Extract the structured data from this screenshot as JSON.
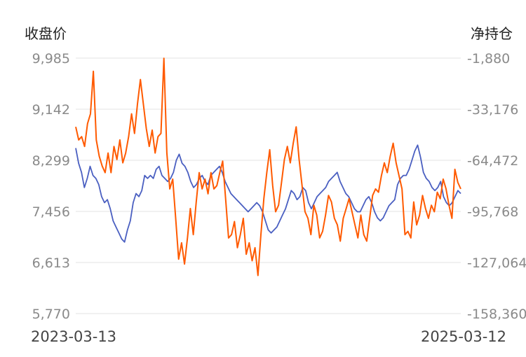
{
  "chart_data": {
    "type": "line",
    "title": "",
    "y_left_label": "收盘价",
    "y_right_label": "净持仓",
    "x_start_label": "2023-03-13",
    "x_end_label": "2025-03-12",
    "y_left_ticks": [
      "9,985",
      "9,142",
      "8,299",
      "7,456",
      "6,613",
      "5,770"
    ],
    "y_right_ticks": [
      "-1,880",
      "-33,176",
      "-64,472",
      "-95,768",
      "-127,064",
      "-158,360"
    ],
    "y_left_range": [
      5770,
      9985
    ],
    "y_right_range": [
      -158360,
      -1880
    ],
    "grid": true,
    "series": [
      {
        "name": "",
        "axis": "left",
        "color": "#4a5fc1",
        "values": [
          8500,
          8250,
          8100,
          7850,
          8000,
          8200,
          8050,
          8000,
          7900,
          7700,
          7600,
          7650,
          7500,
          7300,
          7200,
          7100,
          7000,
          6950,
          7150,
          7300,
          7600,
          7750,
          7700,
          7800,
          8050,
          8000,
          8050,
          8000,
          8150,
          8200,
          8050,
          8000,
          7950,
          8000,
          8100,
          8300,
          8400,
          8250,
          8200,
          8100,
          7950,
          7850,
          7900,
          8000,
          8050,
          7950,
          7900,
          8050,
          8100,
          8150,
          8200,
          8100,
          7950,
          7850,
          7750,
          7700,
          7650,
          7600,
          7550,
          7500,
          7450,
          7500,
          7550,
          7600,
          7550,
          7450,
          7300,
          7150,
          7100,
          7150,
          7200,
          7300,
          7400,
          7500,
          7650,
          7800,
          7750,
          7650,
          7700,
          7850,
          7800,
          7600,
          7500,
          7600,
          7700,
          7750,
          7800,
          7850,
          7950,
          8000,
          8050,
          8100,
          7950,
          7850,
          7750,
          7700,
          7600,
          7500,
          7450,
          7450,
          7550,
          7650,
          7700,
          7600,
          7450,
          7350,
          7300,
          7350,
          7450,
          7550,
          7600,
          7650,
          7900,
          8000,
          8050,
          8050,
          8150,
          8300,
          8450,
          8550,
          8350,
          8100,
          8000,
          7950,
          7850,
          7800,
          7850,
          7950,
          7700,
          7600,
          7550,
          7600,
          7700,
          7800,
          7750
        ]
      },
      {
        "name": "",
        "axis": "right",
        "color": "#ff5a00",
        "values": [
          -44000,
          -52000,
          -50000,
          -56000,
          -42000,
          -36000,
          -10000,
          -52000,
          -62000,
          -68000,
          -72000,
          -60000,
          -72000,
          -56000,
          -64000,
          -52000,
          -66000,
          -60000,
          -50000,
          -36000,
          -48000,
          -30000,
          -15000,
          -30000,
          -45000,
          -56000,
          -46000,
          -60000,
          -50000,
          -48000,
          -2000,
          -60000,
          -82000,
          -76000,
          -100000,
          -125000,
          -115000,
          -128000,
          -112000,
          -94000,
          -110000,
          -90000,
          -72000,
          -82000,
          -76000,
          -85000,
          -72000,
          -82000,
          -80000,
          -72000,
          -65000,
          -88000,
          -112000,
          -110000,
          -102000,
          -118000,
          -110000,
          -100000,
          -122000,
          -115000,
          -126000,
          -118000,
          -135000,
          -110000,
          -88000,
          -72000,
          -58000,
          -80000,
          -96000,
          -92000,
          -78000,
          -64000,
          -56000,
          -66000,
          -54000,
          -44000,
          -64000,
          -80000,
          -96000,
          -100000,
          -110000,
          -92000,
          -98000,
          -112000,
          -108000,
          -98000,
          -86000,
          -90000,
          -100000,
          -104000,
          -114000,
          -100000,
          -94000,
          -88000,
          -96000,
          -104000,
          -112000,
          -98000,
          -110000,
          -114000,
          -100000,
          -86000,
          -82000,
          -84000,
          -74000,
          -66000,
          -72000,
          -62000,
          -54000,
          -66000,
          -74000,
          -82000,
          -110000,
          -108000,
          -112000,
          -90000,
          -104000,
          -98000,
          -86000,
          -94000,
          -100000,
          -92000,
          -96000,
          -84000,
          -88000,
          -76000,
          -82000,
          -92000,
          -100000,
          -70000,
          -78000,
          -82000
        ]
      }
    ]
  }
}
